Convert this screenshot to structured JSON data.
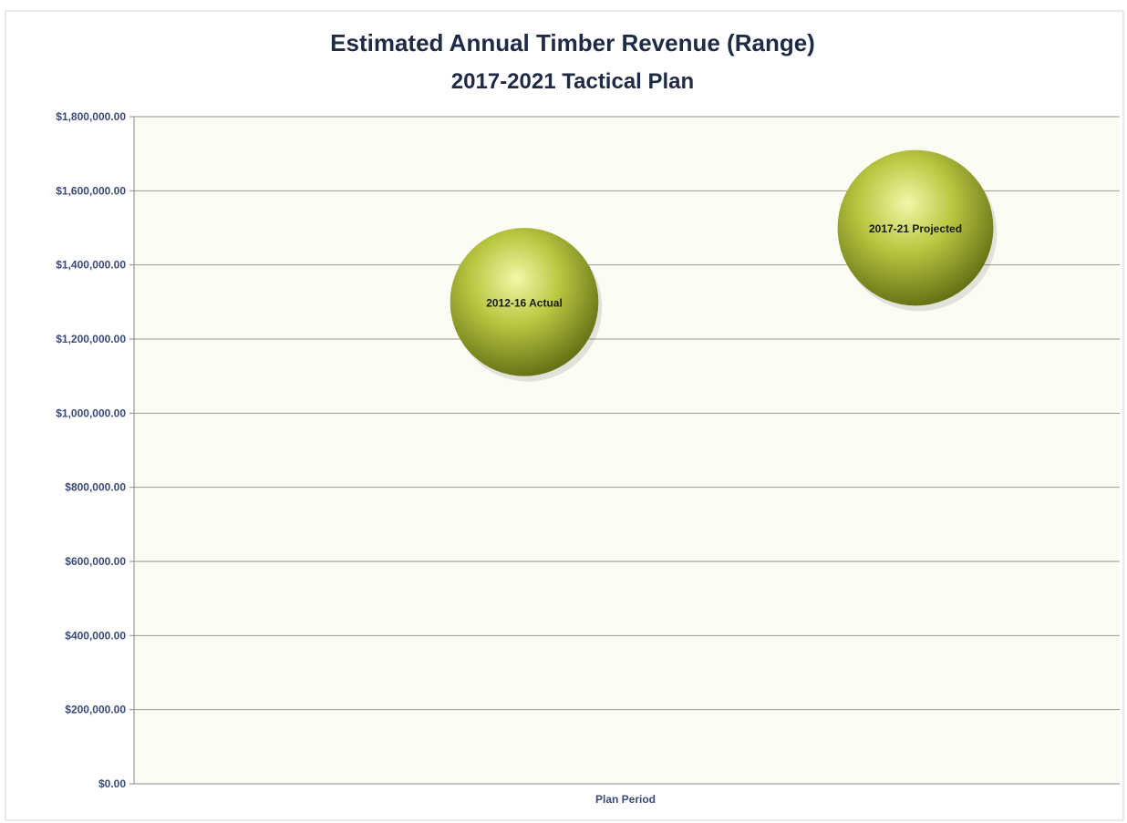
{
  "chart_data": {
    "type": "bubble",
    "title": "Estimated Annual Timber Revenue (Range)",
    "subtitle": "2017-2021 Tactical Plan",
    "xlabel": "Plan Period",
    "ylabel": "",
    "ylim": [
      0,
      1800000
    ],
    "y_ticks": [
      {
        "value": 0,
        "label": "$0.00"
      },
      {
        "value": 200000,
        "label": "$200,000.00"
      },
      {
        "value": 400000,
        "label": "$400,000.00"
      },
      {
        "value": 600000,
        "label": "$600,000.00"
      },
      {
        "value": 800000,
        "label": "$800,000.00"
      },
      {
        "value": 1000000,
        "label": "$1,000,000.00"
      },
      {
        "value": 1200000,
        "label": "$1,200,000.00"
      },
      {
        "value": 1400000,
        "label": "$1,400,000.00"
      },
      {
        "value": 1600000,
        "label": "$1,600,000.00"
      },
      {
        "value": 1800000,
        "label": "$1,800,000.00"
      }
    ],
    "grid": true,
    "legend": "none",
    "points": [
      {
        "label": "2012-16 Actual",
        "x": 1,
        "y": 1300000,
        "y_low": 1100000,
        "y_high": 1500000
      },
      {
        "label": "2017-21 Projected",
        "x": 2,
        "y": 1500000,
        "y_low": 1300000,
        "y_high": 1720000
      }
    ],
    "colors": {
      "bubble_light": "#f2f7a8",
      "bubble_mid": "#b9c640",
      "bubble_dark": "#5f6a12",
      "title": "#1f2a44",
      "axis_label": "#3a4a7a",
      "gridline": "#9a9a9a",
      "plot_bg": "#fbfcf3"
    }
  }
}
